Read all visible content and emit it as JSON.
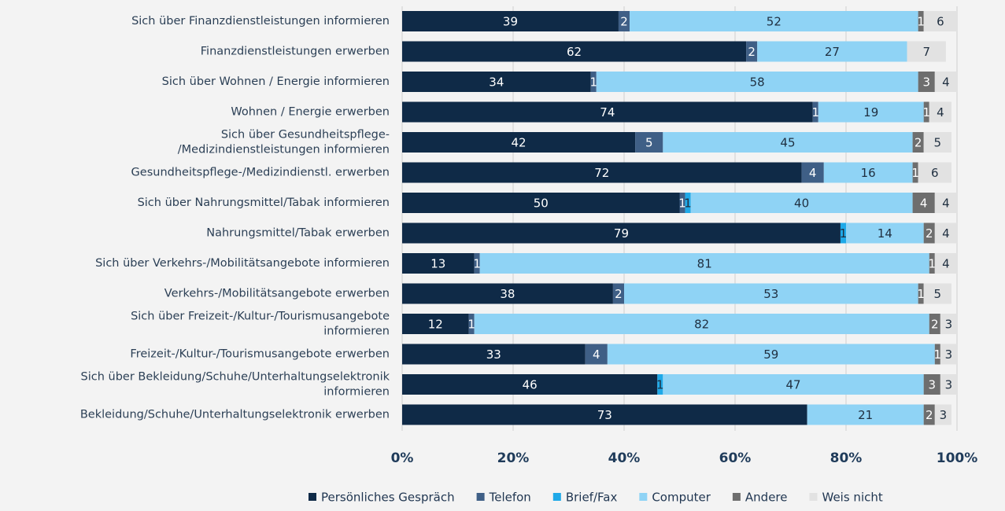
{
  "chart_data": {
    "type": "stacked-barh",
    "categories": [
      [
        "Sich über Finanzdienstleistungen informieren"
      ],
      [
        "Finanzdienstleistungen erwerben"
      ],
      [
        "Sich über Wohnen / Energie informieren"
      ],
      [
        "Wohnen / Energie erwerben"
      ],
      [
        "Sich über Gesundheitspflege-",
        "/Medizindienstleistungen informieren"
      ],
      [
        "Gesundheitspflege-/Medizindienstl. erwerben"
      ],
      [
        "Sich über Nahrungsmittel/Tabak informieren"
      ],
      [
        "Nahrungsmittel/Tabak erwerben"
      ],
      [
        "Sich über Verkehrs-/Mobilitätsangebote informieren"
      ],
      [
        "Verkehrs-/Mobilitätsangebote erwerben"
      ],
      [
        "Sich über Freizeit-/Kultur-/Tourismusangebote",
        "informieren"
      ],
      [
        "Freizeit-/Kultur-/Tourismusangebote erwerben"
      ],
      [
        "Sich über Bekleidung/Schuhe/Unterhaltungselektronik",
        "informieren"
      ],
      [
        "Bekleidung/Schuhe/Unterhaltungselektronik erwerben"
      ]
    ],
    "series": [
      {
        "name": "Persönliches Gespräch",
        "color": "#0f2a47",
        "values": [
          39,
          62,
          34,
          74,
          42,
          72,
          50,
          79,
          13,
          38,
          12,
          33,
          46,
          73
        ]
      },
      {
        "name": "Telefon",
        "color": "#3f5f86",
        "values": [
          2,
          2,
          1,
          1,
          5,
          4,
          1,
          0,
          1,
          2,
          1,
          4,
          0,
          0
        ]
      },
      {
        "name": "Brief/Fax",
        "color": "#1fa9e8",
        "values": [
          0,
          0,
          0,
          0,
          0,
          0,
          1,
          1,
          0,
          0,
          0,
          0,
          1,
          0
        ]
      },
      {
        "name": "Computer",
        "color": "#8fd3f5",
        "values": [
          52,
          27,
          58,
          19,
          45,
          16,
          40,
          14,
          81,
          53,
          82,
          59,
          47,
          21
        ]
      },
      {
        "name": "Andere",
        "color": "#6e6e6e",
        "values": [
          1,
          0,
          3,
          1,
          2,
          1,
          4,
          2,
          1,
          1,
          2,
          1,
          3,
          2
        ]
      },
      {
        "name": "Weis nicht",
        "color": "#e2e2e2",
        "values": [
          6,
          7,
          4,
          4,
          5,
          6,
          4,
          4,
          4,
          5,
          3,
          3,
          3,
          3
        ]
      }
    ],
    "xlim": [
      0,
      100
    ],
    "xticks": [
      {
        "value": 0,
        "label": "0%"
      },
      {
        "value": 20,
        "label": "20%"
      },
      {
        "value": 40,
        "label": "40%"
      },
      {
        "value": 60,
        "label": "60%"
      },
      {
        "value": 80,
        "label": "80%"
      },
      {
        "value": 100,
        "label": "100%"
      }
    ],
    "grid": true
  }
}
